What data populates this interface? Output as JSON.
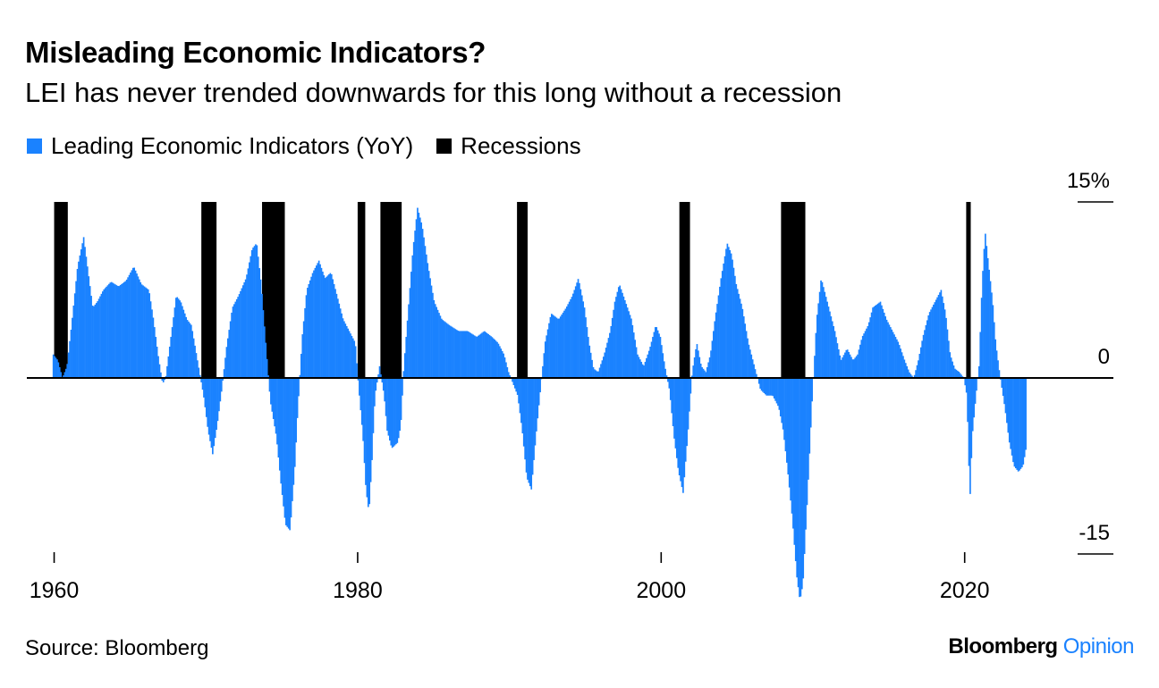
{
  "header": {
    "title": "Misleading Economic Indicators?",
    "subtitle": "LEI has never trended downwards for this long without a recession"
  },
  "legend": {
    "lei_label": "Leading Economic Indicators (YoY)",
    "recession_label": "Recessions"
  },
  "footer": {
    "source": "Source: Bloomberg",
    "brand_main": "Bloomberg",
    "brand_accent": "Opinion"
  },
  "colors": {
    "lei": "#1a82ff",
    "recession": "#000000",
    "brand_accent": "#1a82ff"
  },
  "chart_data": {
    "type": "bar",
    "x_ticks": [
      1960,
      1980,
      2000,
      2020
    ],
    "y_ticks": [
      {
        "value": 15,
        "label": "15%"
      },
      {
        "value": 0,
        "label": "0"
      },
      {
        "value": -15,
        "label": "-15"
      }
    ],
    "xlim": [
      1958.2,
      2029.8
    ],
    "ylim": [
      -15,
      15
    ],
    "y_axis_side": "right",
    "grid": false,
    "legend_position": "top-left",
    "series": [
      {
        "name": "Leading Economic Indicators (YoY)",
        "anchors": [
          [
            1959.9,
            2.0
          ],
          [
            1960.2,
            1.5
          ],
          [
            1960.5,
            0.0
          ],
          [
            1960.8,
            1.0
          ],
          [
            1961.1,
            4.5
          ],
          [
            1961.5,
            9.5
          ],
          [
            1961.9,
            12.0
          ],
          [
            1962.2,
            9.0
          ],
          [
            1962.5,
            6.0
          ],
          [
            1962.8,
            6.5
          ],
          [
            1963.2,
            7.5
          ],
          [
            1963.7,
            8.2
          ],
          [
            1964.2,
            7.8
          ],
          [
            1964.7,
            8.3
          ],
          [
            1965.2,
            9.5
          ],
          [
            1965.7,
            8.0
          ],
          [
            1966.2,
            7.5
          ],
          [
            1966.5,
            5.0
          ],
          [
            1966.8,
            2.0
          ],
          [
            1967.1,
            -0.5
          ],
          [
            1967.3,
            0.0
          ],
          [
            1967.6,
            3.0
          ],
          [
            1968.0,
            7.0
          ],
          [
            1968.3,
            6.5
          ],
          [
            1968.7,
            5.0
          ],
          [
            1969.0,
            4.5
          ],
          [
            1969.4,
            1.5
          ],
          [
            1969.8,
            -1.5
          ],
          [
            1970.1,
            -4.5
          ],
          [
            1970.4,
            -6.5
          ],
          [
            1970.7,
            -4.0
          ],
          [
            1971.0,
            -1.0
          ],
          [
            1971.3,
            2.5
          ],
          [
            1971.7,
            6.0
          ],
          [
            1972.1,
            7.0
          ],
          [
            1972.6,
            8.5
          ],
          [
            1973.0,
            11.0
          ],
          [
            1973.3,
            11.5
          ],
          [
            1973.6,
            8.0
          ],
          [
            1973.9,
            3.0
          ],
          [
            1974.2,
            -2.0
          ],
          [
            1974.6,
            -5.0
          ],
          [
            1974.9,
            -9.0
          ],
          [
            1975.2,
            -12.5
          ],
          [
            1975.5,
            -13.0
          ],
          [
            1975.8,
            -8.0
          ],
          [
            1976.0,
            -3.0
          ],
          [
            1976.3,
            3.5
          ],
          [
            1976.6,
            7.5
          ],
          [
            1977.0,
            9.0
          ],
          [
            1977.4,
            10.0
          ],
          [
            1977.8,
            8.5
          ],
          [
            1978.2,
            9.0
          ],
          [
            1978.6,
            7.0
          ],
          [
            1979.0,
            5.0
          ],
          [
            1979.4,
            4.0
          ],
          [
            1979.8,
            3.0
          ],
          [
            1980.0,
            -0.5
          ],
          [
            1980.3,
            -5.0
          ],
          [
            1980.5,
            -9.5
          ],
          [
            1980.7,
            -11.5
          ],
          [
            1980.9,
            -7.0
          ],
          [
            1981.1,
            -1.5
          ],
          [
            1981.4,
            1.0
          ],
          [
            1981.7,
            -1.5
          ],
          [
            1981.9,
            -4.5
          ],
          [
            1982.2,
            -6.0
          ],
          [
            1982.6,
            -5.5
          ],
          [
            1982.8,
            -4.0
          ],
          [
            1983.0,
            1.0
          ],
          [
            1983.3,
            6.0
          ],
          [
            1983.6,
            11.0
          ],
          [
            1983.9,
            14.5
          ],
          [
            1984.2,
            13.0
          ],
          [
            1984.6,
            9.5
          ],
          [
            1985.0,
            6.5
          ],
          [
            1985.5,
            5.0
          ],
          [
            1986.0,
            4.5
          ],
          [
            1986.6,
            4.0
          ],
          [
            1987.2,
            4.0
          ],
          [
            1987.8,
            3.5
          ],
          [
            1988.3,
            4.0
          ],
          [
            1988.8,
            3.5
          ],
          [
            1989.2,
            3.0
          ],
          [
            1989.6,
            2.0
          ],
          [
            1989.9,
            0.5
          ],
          [
            1990.2,
            -0.5
          ],
          [
            1990.5,
            -1.5
          ],
          [
            1990.8,
            -4.5
          ],
          [
            1991.1,
            -8.5
          ],
          [
            1991.4,
            -9.5
          ],
          [
            1991.7,
            -5.0
          ],
          [
            1992.0,
            -1.0
          ],
          [
            1992.3,
            3.0
          ],
          [
            1992.7,
            5.5
          ],
          [
            1993.2,
            5.0
          ],
          [
            1993.7,
            6.0
          ],
          [
            1994.1,
            7.0
          ],
          [
            1994.5,
            8.5
          ],
          [
            1994.9,
            6.0
          ],
          [
            1995.2,
            3.0
          ],
          [
            1995.5,
            0.8
          ],
          [
            1995.8,
            0.5
          ],
          [
            1996.2,
            2.0
          ],
          [
            1996.6,
            4.0
          ],
          [
            1996.9,
            6.5
          ],
          [
            1997.2,
            8.0
          ],
          [
            1997.6,
            6.5
          ],
          [
            1998.0,
            5.0
          ],
          [
            1998.4,
            2.0
          ],
          [
            1998.8,
            1.0
          ],
          [
            1999.2,
            2.5
          ],
          [
            1999.6,
            4.5
          ],
          [
            1999.9,
            3.5
          ],
          [
            2000.2,
            1.0
          ],
          [
            2000.5,
            -1.0
          ],
          [
            2000.8,
            -5.0
          ],
          [
            2001.1,
            -8.0
          ],
          [
            2001.4,
            -9.8
          ],
          [
            2001.7,
            -5.0
          ],
          [
            2002.0,
            0.5
          ],
          [
            2002.3,
            3.0
          ],
          [
            2002.6,
            1.0
          ],
          [
            2002.9,
            0.5
          ],
          [
            2003.2,
            2.0
          ],
          [
            2003.5,
            5.0
          ],
          [
            2003.9,
            8.5
          ],
          [
            2004.3,
            11.5
          ],
          [
            2004.6,
            10.5
          ],
          [
            2004.9,
            8.0
          ],
          [
            2005.3,
            6.0
          ],
          [
            2005.7,
            3.0
          ],
          [
            2006.1,
            1.0
          ],
          [
            2006.5,
            -1.0
          ],
          [
            2006.9,
            -1.5
          ],
          [
            2007.3,
            -1.5
          ],
          [
            2007.7,
            -2.5
          ],
          [
            2008.0,
            -4.5
          ],
          [
            2008.3,
            -8.0
          ],
          [
            2008.6,
            -12.0
          ],
          [
            2008.9,
            -17.0
          ],
          [
            2009.1,
            -19.0
          ],
          [
            2009.3,
            -17.5
          ],
          [
            2009.6,
            -10.0
          ],
          [
            2009.9,
            -2.0
          ],
          [
            2010.2,
            5.0
          ],
          [
            2010.5,
            8.5
          ],
          [
            2010.8,
            7.0
          ],
          [
            2011.1,
            5.5
          ],
          [
            2011.4,
            4.0
          ],
          [
            2011.8,
            1.5
          ],
          [
            2012.2,
            2.5
          ],
          [
            2012.6,
            1.5
          ],
          [
            2012.9,
            2.0
          ],
          [
            2013.2,
            3.5
          ],
          [
            2013.6,
            4.5
          ],
          [
            2013.9,
            6.0
          ],
          [
            2014.4,
            6.5
          ],
          [
            2014.8,
            5.0
          ],
          [
            2015.2,
            4.0
          ],
          [
            2015.6,
            3.0
          ],
          [
            2016.0,
            1.5
          ],
          [
            2016.3,
            0.5
          ],
          [
            2016.6,
            0.0
          ],
          [
            2016.9,
            1.5
          ],
          [
            2017.2,
            3.5
          ],
          [
            2017.6,
            5.5
          ],
          [
            2018.0,
            6.5
          ],
          [
            2018.4,
            7.5
          ],
          [
            2018.7,
            5.5
          ],
          [
            2019.0,
            2.0
          ],
          [
            2019.3,
            0.8
          ],
          [
            2019.6,
            0.5
          ],
          [
            2019.9,
            0.0
          ],
          [
            2020.1,
            -1.5
          ],
          [
            2020.2,
            -6.0
          ],
          [
            2020.3,
            -10.5
          ],
          [
            2020.45,
            -5.0
          ],
          [
            2020.7,
            -1.5
          ],
          [
            2020.9,
            1.0
          ],
          [
            2021.1,
            8.0
          ],
          [
            2021.3,
            12.5
          ],
          [
            2021.5,
            10.0
          ],
          [
            2021.8,
            6.5
          ],
          [
            2022.0,
            3.0
          ],
          [
            2022.3,
            0.0
          ],
          [
            2022.6,
            -2.5
          ],
          [
            2022.9,
            -5.5
          ],
          [
            2023.2,
            -7.5
          ],
          [
            2023.5,
            -8.0
          ],
          [
            2023.8,
            -7.5
          ],
          [
            2024.0,
            -6.0
          ]
        ]
      },
      {
        "name": "Recessions",
        "periods": [
          [
            1960.0,
            1960.9
          ],
          [
            1969.7,
            1970.7
          ],
          [
            1973.7,
            1975.2
          ],
          [
            1980.0,
            1980.5
          ],
          [
            1981.5,
            1982.9
          ],
          [
            1990.5,
            1991.2
          ],
          [
            2001.2,
            2001.9
          ],
          [
            2007.9,
            2009.5
          ],
          [
            2020.1,
            2020.4
          ]
        ]
      }
    ]
  }
}
